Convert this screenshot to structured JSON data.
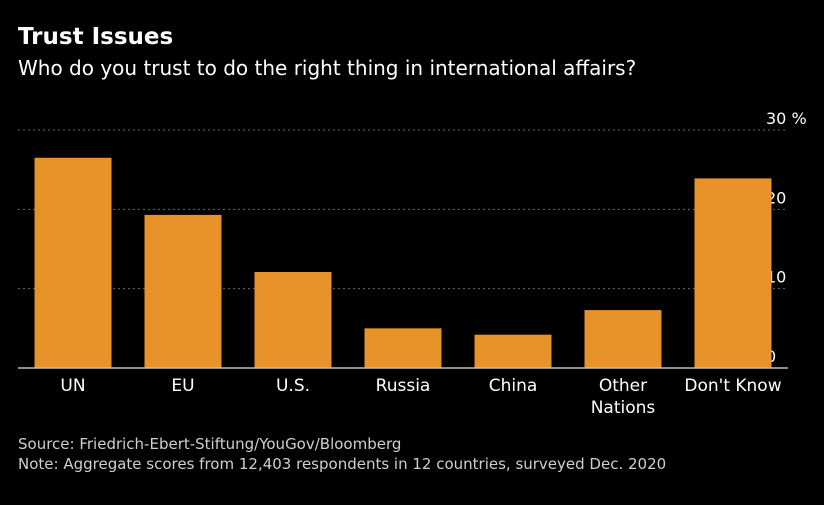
{
  "header": {
    "title": "Trust Issues",
    "subtitle": "Who do you trust to do the right thing in international affairs?"
  },
  "footer": {
    "source": "Source: Friedrich-Ebert-Stiftung/YouGov/Bloomberg",
    "note": "Note: Aggregate scores from 12,403 respondents in 12 countries, surveyed Dec. 2020"
  },
  "chart_data": {
    "type": "bar",
    "title": "Trust Issues",
    "subtitle": "Who do you trust to do the right thing in international affairs?",
    "categories": [
      "UN",
      "EU",
      "U.S.",
      "Russia",
      "China",
      "Other Nations",
      "Don't Know"
    ],
    "values": [
      26.5,
      19.3,
      12.1,
      5,
      4.2,
      7.3,
      23.9
    ],
    "yunit": "%",
    "ylim": [
      0,
      30
    ],
    "yticks": [
      0,
      10,
      20,
      30
    ],
    "ytick_labels": [
      "0",
      "10",
      "20",
      "30 %"
    ],
    "grid": true,
    "yaxis_side": "right",
    "bar_color": "#e8922a",
    "background_color": "#000000"
  }
}
